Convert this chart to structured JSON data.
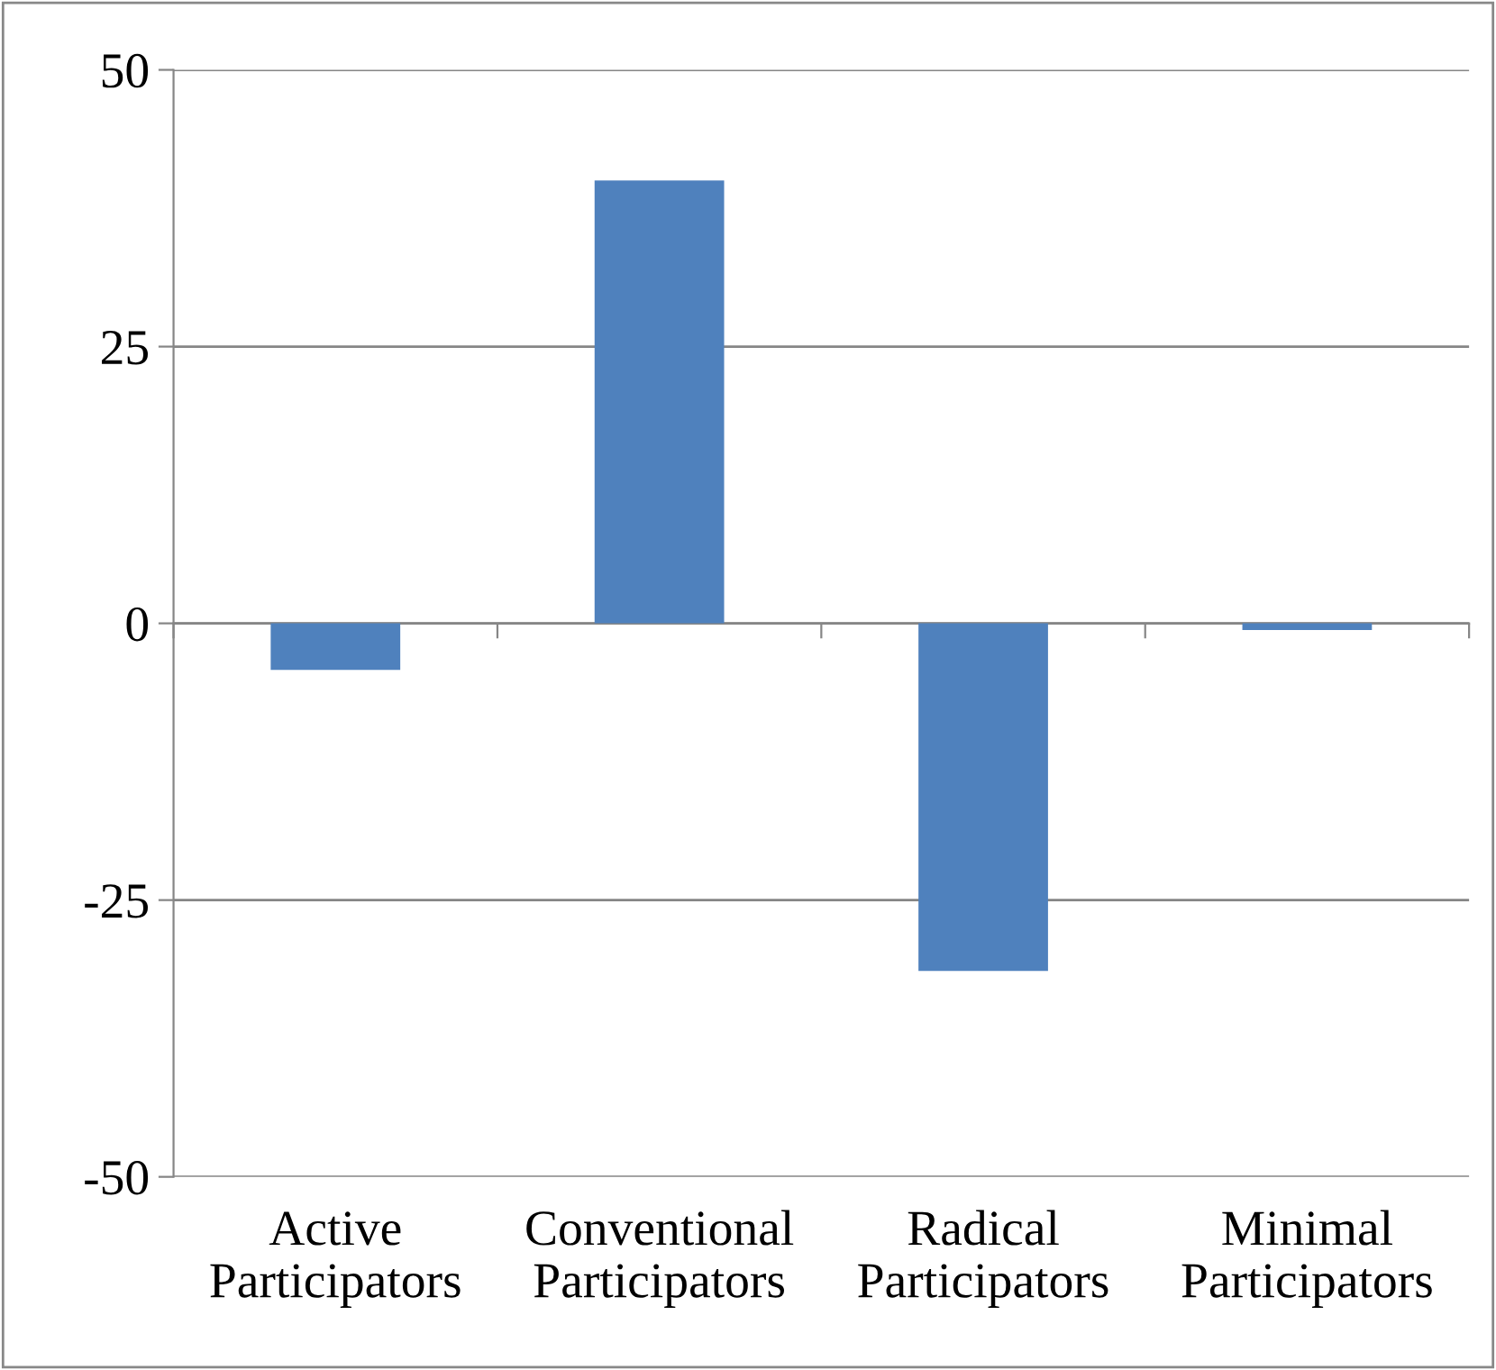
{
  "chart_data": {
    "type": "bar",
    "categories": [
      "Active\nParticipators",
      "Conventional\nParticipators",
      "Radical\nParticipators",
      "Minimal\nParticipators"
    ],
    "values": [
      -4.2,
      40,
      -31.4,
      -0.6
    ],
    "color": "#4f81bd",
    "ylim": [
      -50,
      50
    ],
    "yticks": [
      -50,
      -25,
      0,
      25,
      50
    ],
    "grid": "y",
    "legend": false
  }
}
